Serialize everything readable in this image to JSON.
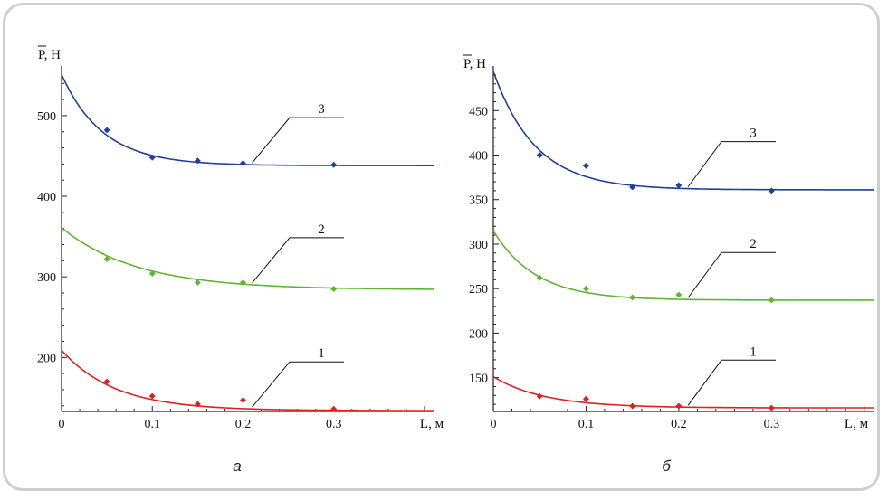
{
  "colors": {
    "curve1": "#e02020",
    "curve2": "#5fb52e",
    "curve3": "#1f3f99",
    "axis": "#222222"
  },
  "chart_data": [
    {
      "type": "line",
      "caption": "а",
      "ylabel": "P, Н",
      "xlabel": "L, м",
      "xlim": [
        0,
        0.41
      ],
      "ylim": [
        133,
        556
      ],
      "xticks": [
        0,
        0.1,
        0.2,
        0.3
      ],
      "xtick_labels": [
        "0",
        "0.1",
        "0.2",
        "0.3"
      ],
      "yticks": [
        200,
        300,
        400,
        500
      ],
      "ytick_labels": [
        "200",
        "300",
        "400",
        "500"
      ],
      "series": [
        {
          "name": "1",
          "points_x": [
            0.05,
            0.1,
            0.15,
            0.2,
            0.3
          ],
          "points_y": [
            170,
            152,
            142,
            147,
            136
          ],
          "curve": {
            "a": 134,
            "b": 75,
            "k": 17
          }
        },
        {
          "name": "2",
          "points_x": [
            0.05,
            0.1,
            0.15,
            0.2,
            0.3
          ],
          "points_y": [
            322,
            304,
            293,
            293,
            285
          ],
          "curve": {
            "a": 284,
            "b": 77,
            "k": 12
          }
        },
        {
          "name": "3",
          "points_x": [
            0.05,
            0.1,
            0.15,
            0.2,
            0.3
          ],
          "points_y": [
            482,
            448,
            444,
            441,
            439
          ],
          "curve": {
            "a": 438,
            "b": 113,
            "k": 22
          }
        }
      ]
    },
    {
      "type": "line",
      "caption": "б",
      "ylabel": "P, Н",
      "xlabel": "L, м",
      "xlim": [
        0,
        0.41
      ],
      "ylim": [
        112,
        495
      ],
      "xticks": [
        0,
        0.1,
        0.2,
        0.3
      ],
      "xtick_labels": [
        "0",
        "0.1",
        "0.2",
        "0.3"
      ],
      "yticks": [
        150,
        200,
        250,
        300,
        350,
        400,
        450
      ],
      "ytick_labels": [
        "150",
        "200",
        "250",
        "300",
        "350",
        "400",
        "450"
      ],
      "series": [
        {
          "name": "1",
          "points_x": [
            0.05,
            0.1,
            0.15,
            0.2,
            0.3
          ],
          "points_y": [
            129,
            126,
            118,
            118,
            116
          ],
          "curve": {
            "a": 116,
            "b": 35,
            "k": 18
          }
        },
        {
          "name": "2",
          "points_x": [
            0.05,
            0.1,
            0.15,
            0.2,
            0.3
          ],
          "points_y": [
            262,
            250,
            240,
            243,
            237
          ],
          "curve": {
            "a": 237,
            "b": 78,
            "k": 22
          }
        },
        {
          "name": "3",
          "points_x": [
            0.05,
            0.1,
            0.15,
            0.2,
            0.3
          ],
          "points_y": [
            400,
            388,
            364,
            366,
            360
          ],
          "curve": {
            "a": 361,
            "b": 133,
            "k": 22
          }
        }
      ]
    }
  ]
}
